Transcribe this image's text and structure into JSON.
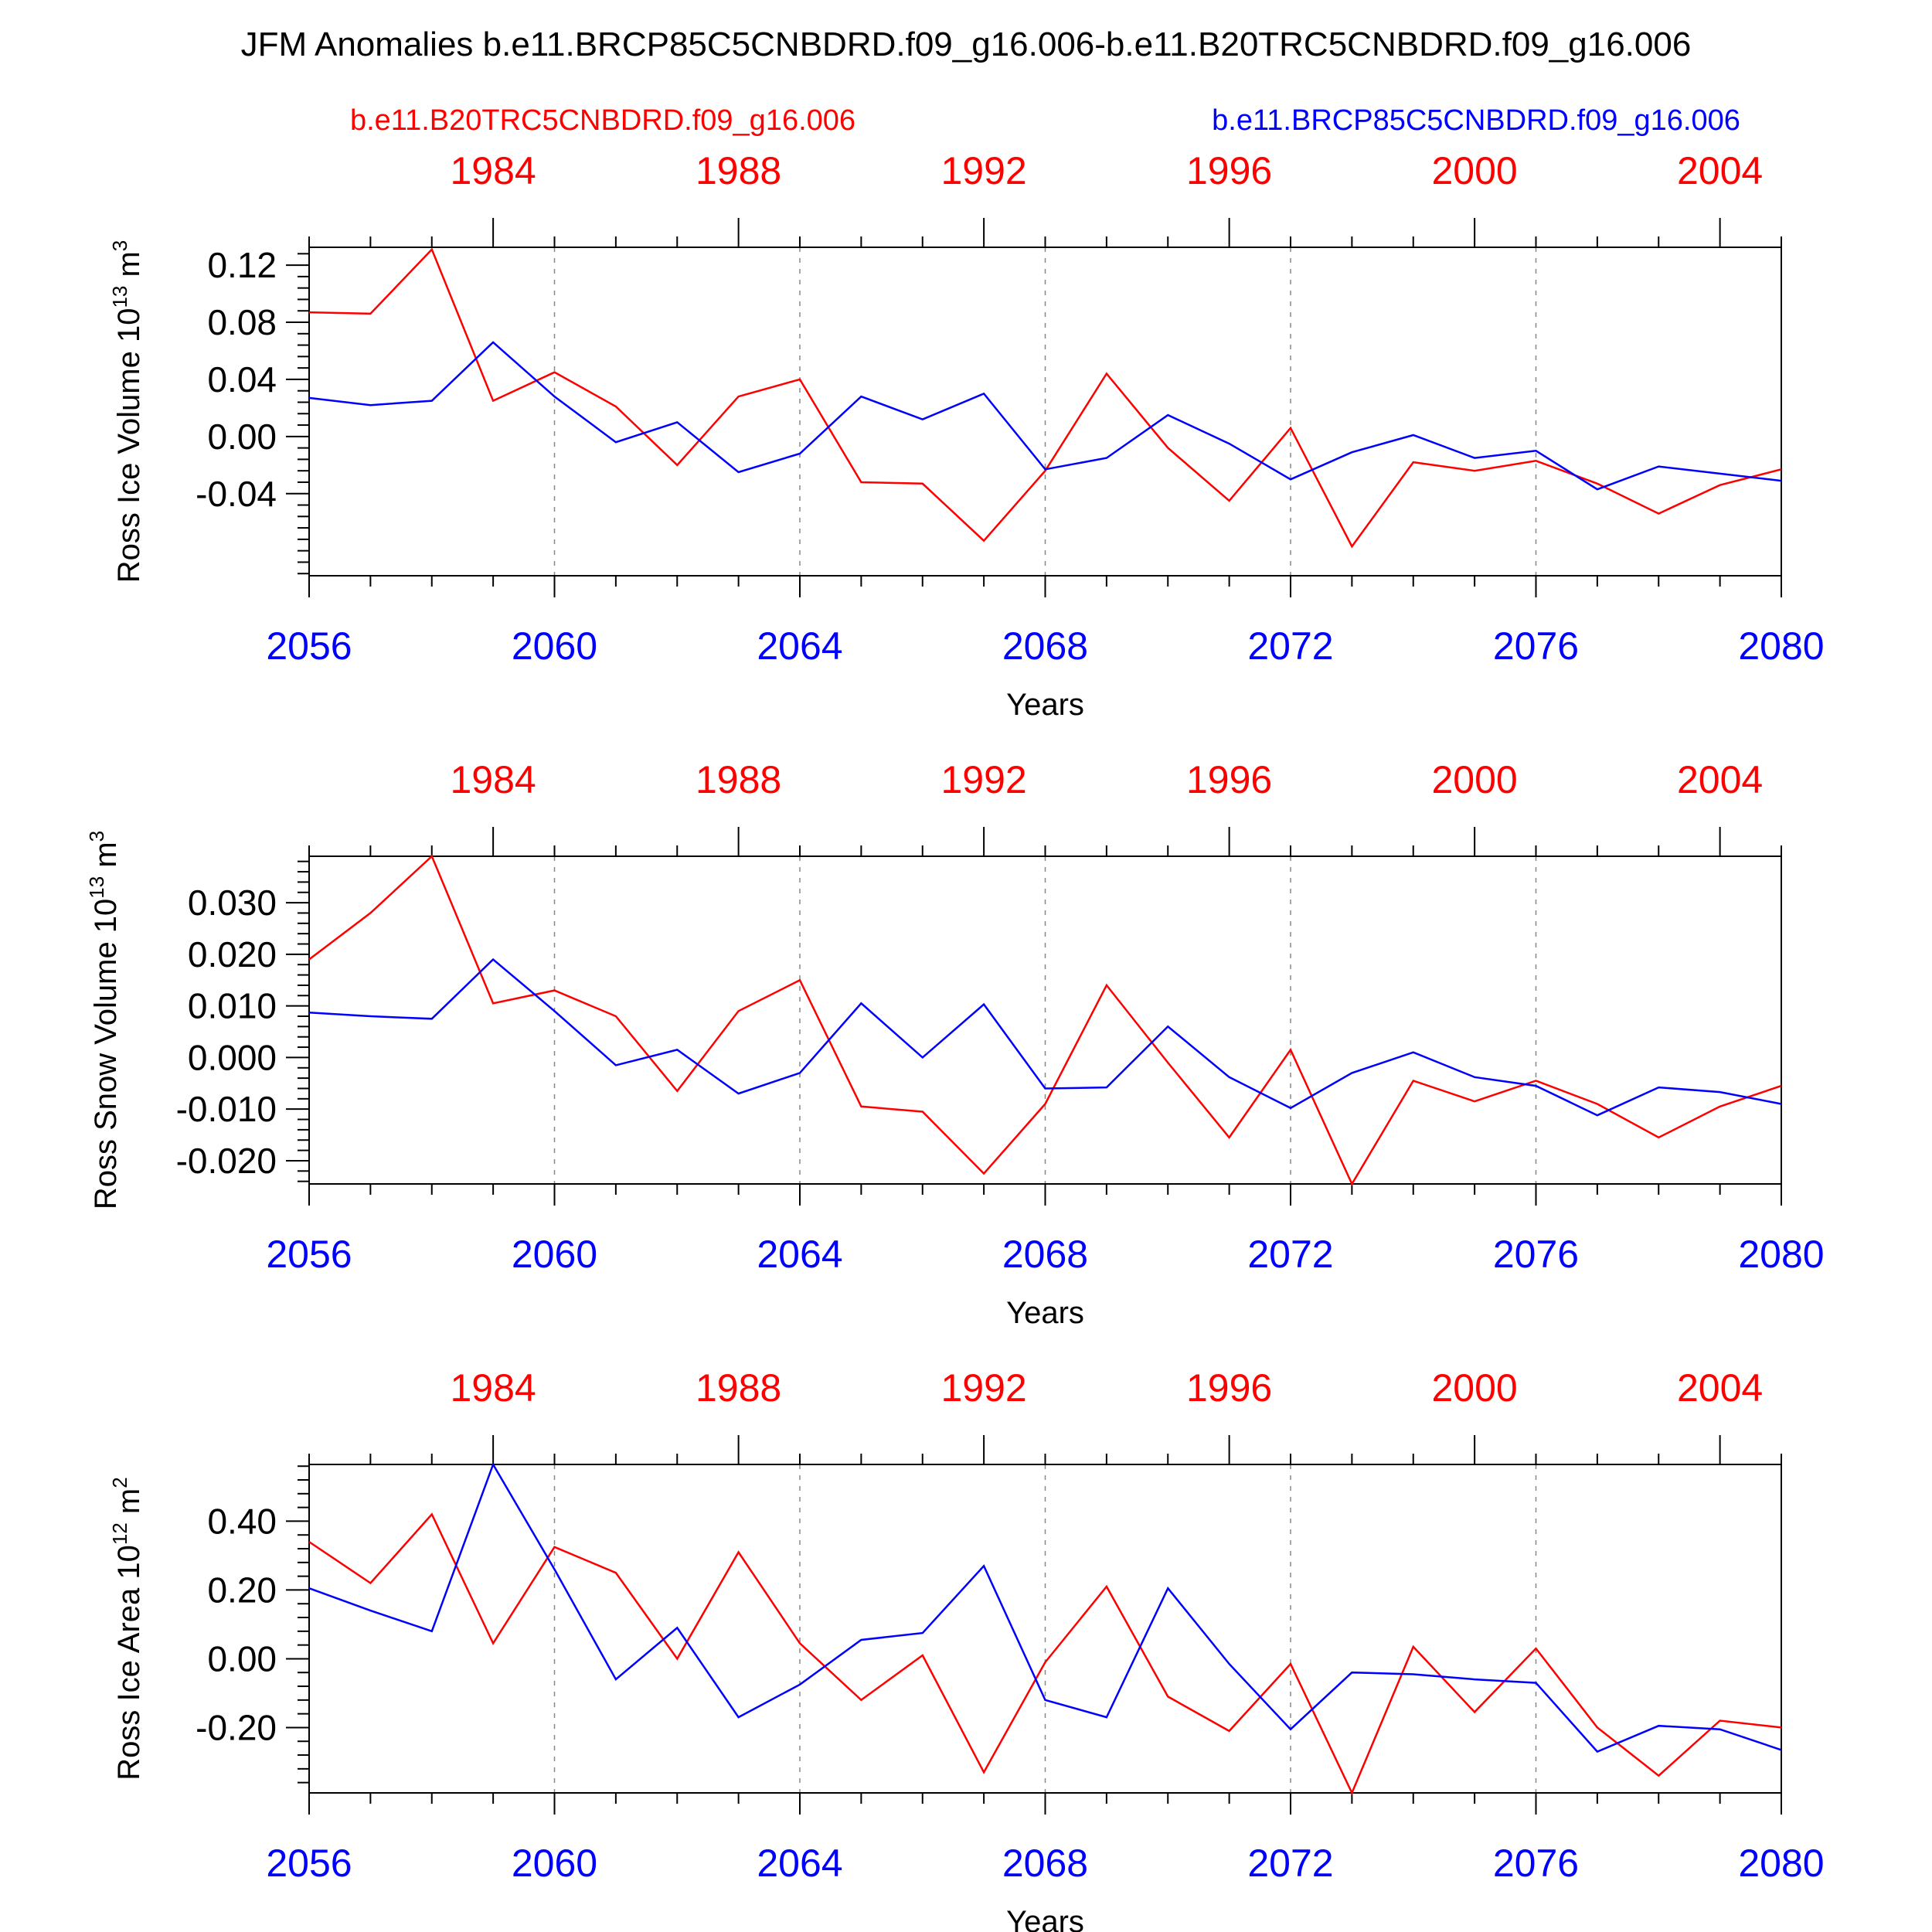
{
  "title": "JFM Anomalies b.e11.BRCP85C5CNBDRD.f09_g16.006-b.e11.B20TRC5CNBDRD.f09_g16.006",
  "legend": {
    "red_label": "b.e11.B20TRC5CNBDRD.f09_g16.006",
    "blue_label": "b.e11.BRCP85C5CNBDRD.f09_g16.006"
  },
  "colors": {
    "red": "#ff0000",
    "blue": "#0000ff",
    "axis": "#000000",
    "grid": "#888888"
  },
  "chart_data": [
    {
      "type": "line",
      "ylabel": "Ross Ice Volume 10",
      "ylabel_exp": "13",
      "ylabel_unit": " m",
      "ylabel_unit_exp": "3",
      "xlabel": "Years",
      "bottom_axis": {
        "color": "blue",
        "range": [
          2056,
          2080
        ],
        "ticks": [
          "2056",
          "2060",
          "2064",
          "2068",
          "2072",
          "2076",
          "2080"
        ]
      },
      "top_axis": {
        "color": "red",
        "ticks": [
          "1984",
          "1988",
          "1992",
          "1996",
          "2000",
          "2004"
        ]
      },
      "ylim": [
        -0.0975,
        0.1325
      ],
      "yticks": [
        0.12,
        0.08,
        0.04,
        0.0,
        -0.04
      ],
      "ytick_labels": [
        "0.12",
        "0.08",
        "0.04",
        "0.00",
        "-0.04"
      ],
      "x": [
        2056,
        2057,
        2058,
        2059,
        2060,
        2061,
        2062,
        2063,
        2064,
        2065,
        2066,
        2067,
        2068,
        2069,
        2070,
        2071,
        2072,
        2073,
        2074,
        2075,
        2076,
        2077,
        2078,
        2079,
        2080
      ],
      "series": [
        {
          "name": "b.e11.B20TRC5CNBDRD.f09_g16.006",
          "color": "red",
          "values": [
            0.087,
            0.086,
            0.131,
            0.025,
            0.045,
            0.021,
            -0.02,
            0.028,
            0.04,
            -0.032,
            -0.033,
            -0.073,
            -0.024,
            0.044,
            -0.008,
            -0.045,
            0.006,
            -0.077,
            -0.018,
            -0.024,
            -0.017,
            -0.033,
            -0.054,
            -0.034,
            -0.023
          ]
        },
        {
          "name": "b.e11.BRCP85C5CNBDRD.f09_g16.006",
          "color": "blue",
          "values": [
            0.027,
            0.022,
            0.025,
            0.066,
            0.028,
            -0.004,
            0.01,
            -0.025,
            -0.012,
            0.028,
            0.012,
            0.03,
            -0.023,
            -0.015,
            0.015,
            -0.005,
            -0.03,
            -0.011,
            0.001,
            -0.015,
            -0.01,
            -0.037,
            -0.021,
            -0.026,
            -0.031
          ]
        }
      ]
    },
    {
      "type": "line",
      "ylabel": "Ross Snow Volume 10",
      "ylabel_exp": "13",
      "ylabel_unit": " m",
      "ylabel_unit_exp": "3",
      "xlabel": "Years",
      "bottom_axis": {
        "color": "blue",
        "range": [
          2056,
          2080
        ],
        "ticks": [
          "2056",
          "2060",
          "2064",
          "2068",
          "2072",
          "2076",
          "2080"
        ]
      },
      "top_axis": {
        "color": "red",
        "ticks": [
          "1984",
          "1988",
          "1992",
          "1996",
          "2000",
          "2004"
        ]
      },
      "ylim": [
        -0.0245,
        0.039
      ],
      "yticks": [
        0.03,
        0.02,
        0.01,
        0.0,
        -0.01,
        -0.02
      ],
      "ytick_labels": [
        "0.030",
        "0.020",
        "0.010",
        "0.000",
        "-0.010",
        "-0.020"
      ],
      "x": [
        2056,
        2057,
        2058,
        2059,
        2060,
        2061,
        2062,
        2063,
        2064,
        2065,
        2066,
        2067,
        2068,
        2069,
        2070,
        2071,
        2072,
        2073,
        2074,
        2075,
        2076,
        2077,
        2078,
        2079,
        2080
      ],
      "series": [
        {
          "name": "b.e11.B20TRC5CNBDRD.f09_g16.006",
          "color": "red",
          "values": [
            0.019,
            0.028,
            0.039,
            0.0105,
            0.013,
            0.008,
            -0.0065,
            0.009,
            0.015,
            -0.0095,
            -0.0105,
            -0.0225,
            -0.009,
            0.014,
            -0.001,
            -0.0155,
            0.0015,
            -0.0245,
            -0.0045,
            -0.0085,
            -0.0045,
            -0.009,
            -0.0155,
            -0.0095,
            -0.0055
          ]
        },
        {
          "name": "b.e11.BRCP85C5CNBDRD.f09_g16.006",
          "color": "blue",
          "values": [
            0.0087,
            0.008,
            0.0075,
            0.019,
            0.009,
            -0.0015,
            0.0015,
            -0.007,
            -0.003,
            0.0105,
            0.0,
            0.0103,
            -0.006,
            -0.0058,
            0.006,
            -0.0038,
            -0.0098,
            -0.003,
            0.001,
            -0.0038,
            -0.0055,
            -0.0112,
            -0.0058,
            -0.0067,
            -0.009
          ]
        }
      ]
    },
    {
      "type": "line",
      "ylabel": "Ross Ice Area 10",
      "ylabel_exp": "12",
      "ylabel_unit": " m",
      "ylabel_unit_exp": "2",
      "xlabel": "Years",
      "bottom_axis": {
        "color": "blue",
        "range": [
          2056,
          2080
        ],
        "ticks": [
          "2056",
          "2060",
          "2064",
          "2068",
          "2072",
          "2076",
          "2080"
        ]
      },
      "top_axis": {
        "color": "red",
        "ticks": [
          "1984",
          "1988",
          "1992",
          "1996",
          "2000",
          "2004"
        ]
      },
      "ylim": [
        -0.39,
        0.565
      ],
      "yticks": [
        0.4,
        0.2,
        0.0,
        -0.2
      ],
      "ytick_labels": [
        "0.40",
        "0.20",
        "0.00",
        "-0.20"
      ],
      "x": [
        2056,
        2057,
        2058,
        2059,
        2060,
        2061,
        2062,
        2063,
        2064,
        2065,
        2066,
        2067,
        2068,
        2069,
        2070,
        2071,
        2072,
        2073,
        2074,
        2075,
        2076,
        2077,
        2078,
        2079,
        2080
      ],
      "series": [
        {
          "name": "b.e11.B20TRC5CNBDRD.f09_g16.006",
          "color": "red",
          "values": [
            0.34,
            0.22,
            0.42,
            0.045,
            0.325,
            0.25,
            0.0,
            0.31,
            0.045,
            -0.12,
            0.01,
            -0.33,
            -0.01,
            0.21,
            -0.11,
            -0.21,
            -0.015,
            -0.39,
            0.035,
            -0.155,
            0.03,
            -0.2,
            -0.34,
            -0.18,
            -0.2
          ]
        },
        {
          "name": "b.e11.BRCP85C5CNBDRD.f09_g16.006",
          "color": "blue",
          "values": [
            0.205,
            0.14,
            0.08,
            0.565,
            0.26,
            -0.06,
            0.09,
            -0.17,
            -0.075,
            0.055,
            0.075,
            0.27,
            -0.12,
            -0.17,
            0.205,
            -0.015,
            -0.205,
            -0.04,
            -0.045,
            -0.06,
            -0.07,
            -0.27,
            -0.195,
            -0.205,
            -0.265
          ]
        }
      ]
    }
  ]
}
